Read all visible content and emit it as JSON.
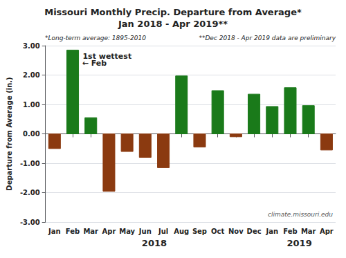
{
  "chart_data": {
    "type": "bar",
    "title": "Missouri Monthly Precip. Departure from Average*",
    "subtitle": "Jan 2018 - Apr 2019**",
    "ylabel": "Departure from Average (in.)",
    "categories": [
      "Jan",
      "Feb",
      "Mar",
      "Apr",
      "May",
      "Jun",
      "Jul",
      "Aug",
      "Sep",
      "Oct",
      "Nov",
      "Dec",
      "Jan",
      "Feb",
      "Mar",
      "Apr"
    ],
    "values": [
      -0.5,
      2.85,
      0.55,
      -1.95,
      -0.6,
      -0.8,
      -1.15,
      1.97,
      -0.45,
      1.47,
      -0.1,
      1.35,
      0.93,
      1.57,
      0.96,
      -0.55
    ],
    "colors": [
      "#8B3A10",
      "#1a7a1a",
      "#1a7a1a",
      "#8B3A10",
      "#8B3A10",
      "#8B3A10",
      "#8B3A10",
      "#1a7a1a",
      "#8B3A10",
      "#1a7a1a",
      "#8B3A10",
      "#1a7a1a",
      "#1a7a1a",
      "#1a7a1a",
      "#1a7a1a",
      "#8B3A10"
    ],
    "ylim": [
      -3.0,
      3.0
    ],
    "yticks": [
      {
        "value": -3.0,
        "label": "-3.00"
      },
      {
        "value": -2.0,
        "label": "-2.00"
      },
      {
        "value": -1.0,
        "label": "-1.00"
      },
      {
        "value": 0.0,
        "label": "0.00"
      },
      {
        "value": 1.0,
        "label": "1.00"
      },
      {
        "value": 2.0,
        "label": "2.00"
      },
      {
        "value": 3.0,
        "label": "3.00"
      }
    ],
    "grid": true,
    "annotations": [
      "1st wettest",
      "← Feb",
      "2018",
      "2019",
      "*Long-term average: 1895-2010",
      "**Dec 2018 - Apr 2019 data are preliminary",
      "climate.missouri.edu"
    ]
  }
}
